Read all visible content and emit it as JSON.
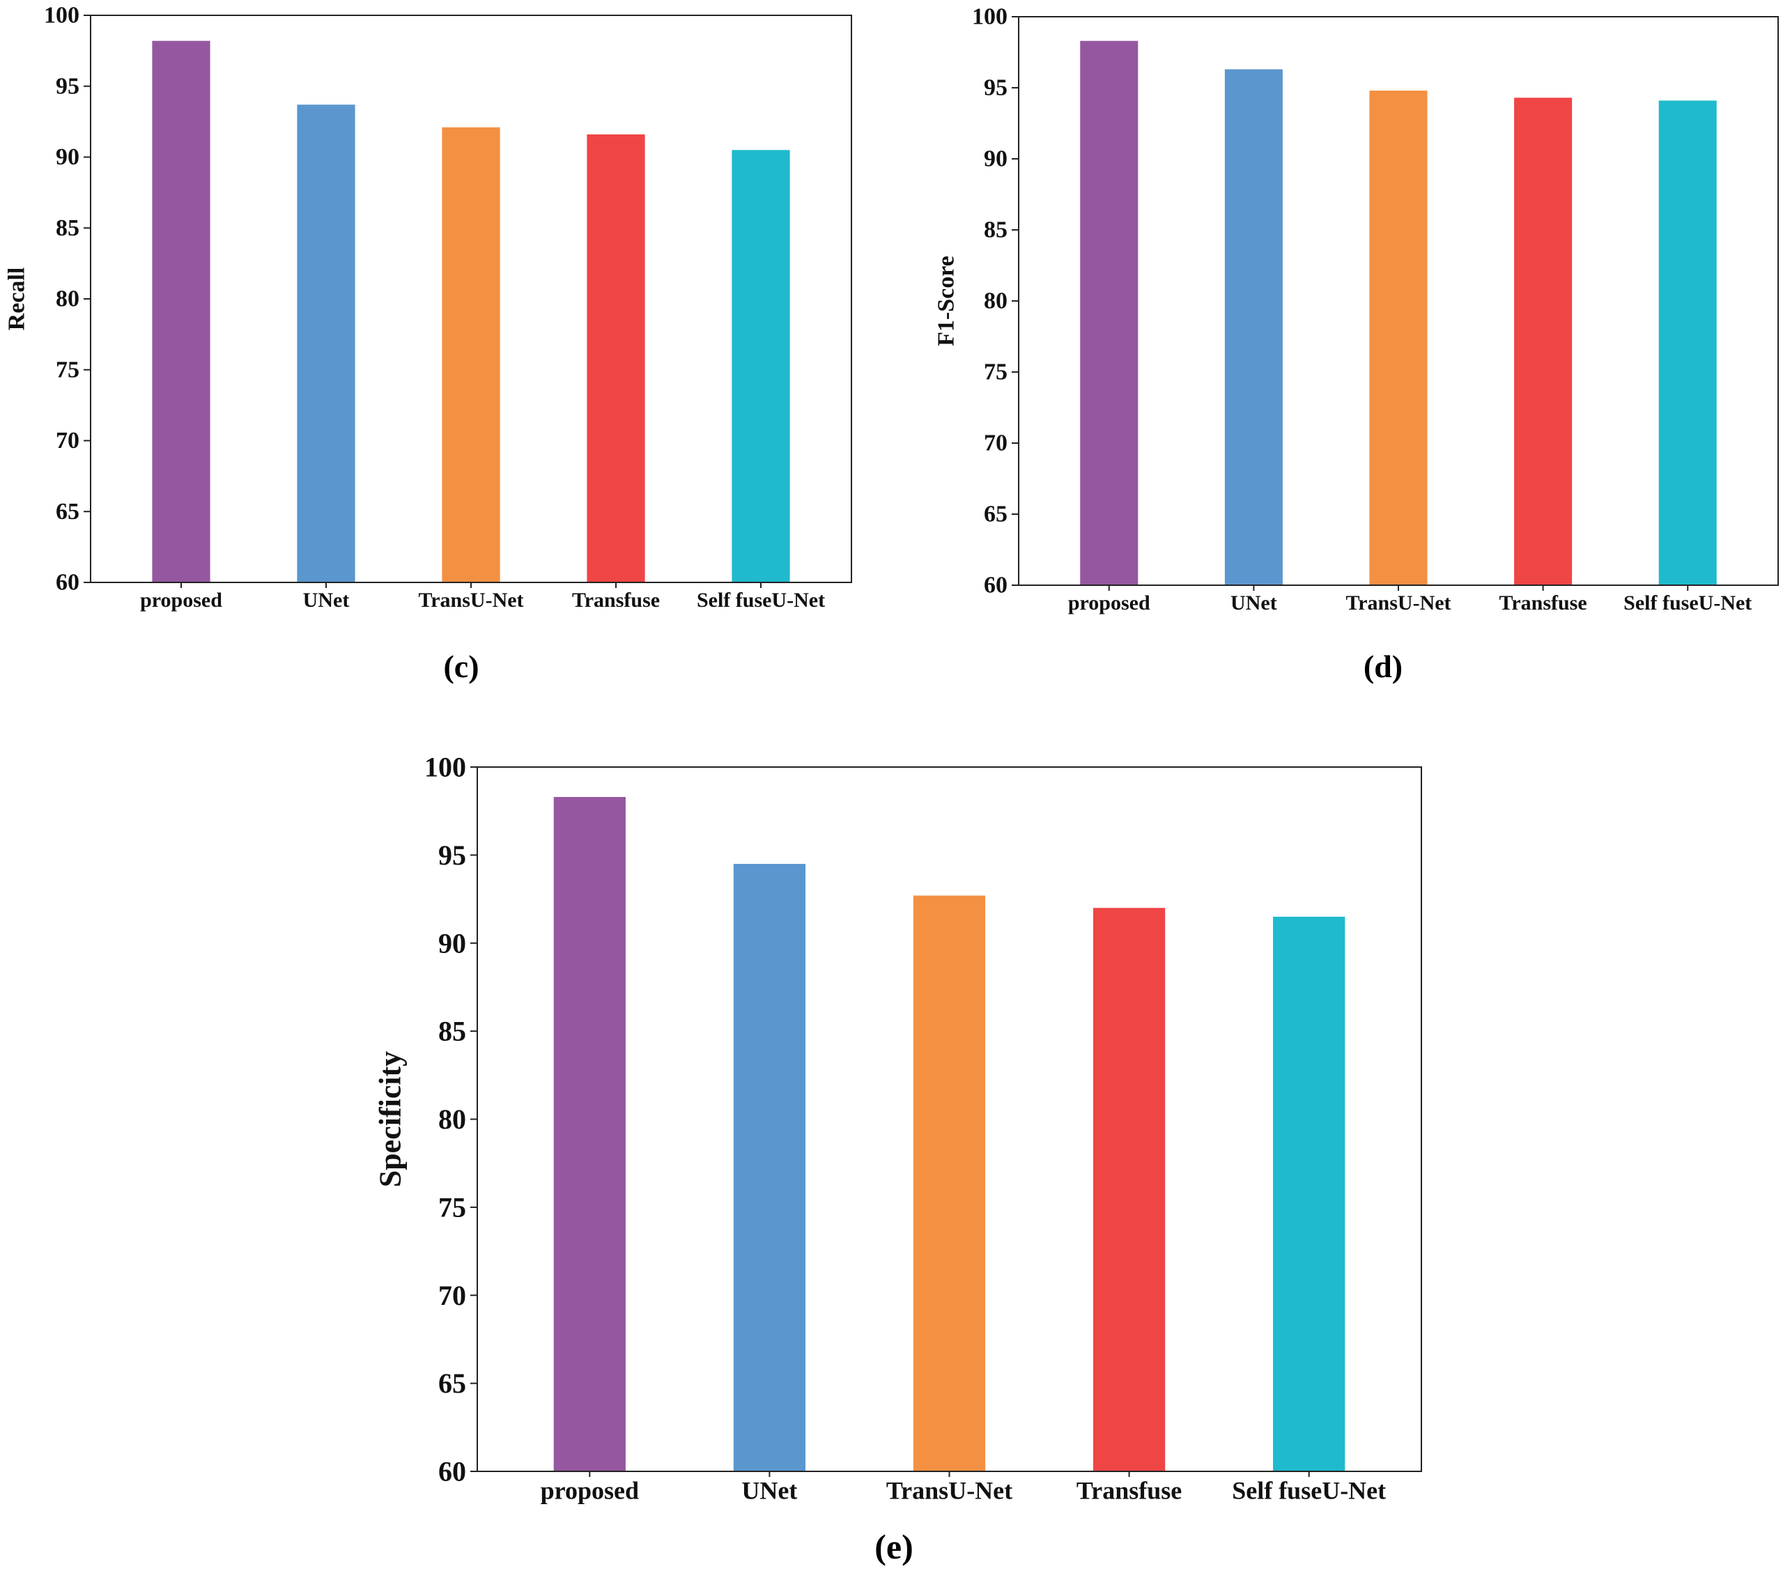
{
  "chart_data": [
    {
      "id": "c",
      "type": "bar",
      "caption": "(c)",
      "title": "",
      "xlabel": "",
      "ylabel": "Recall",
      "ylim": [
        60,
        100
      ],
      "yticks": [
        60,
        65,
        70,
        75,
        80,
        85,
        90,
        95,
        100
      ],
      "grid": false,
      "categories": [
        "proposed",
        "UNet",
        "TransU-Net",
        "Transfuse",
        "Self fuseU-Net"
      ],
      "values": [
        98.2,
        93.7,
        92.1,
        91.6,
        90.5
      ],
      "colors": [
        "#9558a0",
        "#5b96ce",
        "#f39042",
        "#ef4545",
        "#1fbacd"
      ]
    },
    {
      "id": "d",
      "type": "bar",
      "caption": "(d)",
      "title": "",
      "xlabel": "",
      "ylabel": "F1-Score",
      "ylim": [
        60,
        100
      ],
      "yticks": [
        60,
        65,
        70,
        75,
        80,
        85,
        90,
        95,
        100
      ],
      "grid": false,
      "categories": [
        "proposed",
        "UNet",
        "TransU-Net",
        "Transfuse",
        "Self fuseU-Net"
      ],
      "values": [
        98.3,
        96.3,
        94.8,
        94.3,
        94.1
      ],
      "colors": [
        "#9558a0",
        "#5b96ce",
        "#f39042",
        "#ef4545",
        "#1fbacd"
      ]
    },
    {
      "id": "e",
      "type": "bar",
      "caption": "(e)",
      "title": "",
      "xlabel": "",
      "ylabel": "Specificity",
      "ylim": [
        60,
        100
      ],
      "yticks": [
        60,
        65,
        70,
        75,
        80,
        85,
        90,
        95,
        100
      ],
      "grid": false,
      "categories": [
        "proposed",
        "UNet",
        "TransU-Net",
        "Transfuse",
        "Self fuseU-Net"
      ],
      "values": [
        98.3,
        94.5,
        92.7,
        92.0,
        91.5
      ],
      "colors": [
        "#9558a0",
        "#5b96ce",
        "#f39042",
        "#ef4545",
        "#1fbacd"
      ]
    }
  ]
}
